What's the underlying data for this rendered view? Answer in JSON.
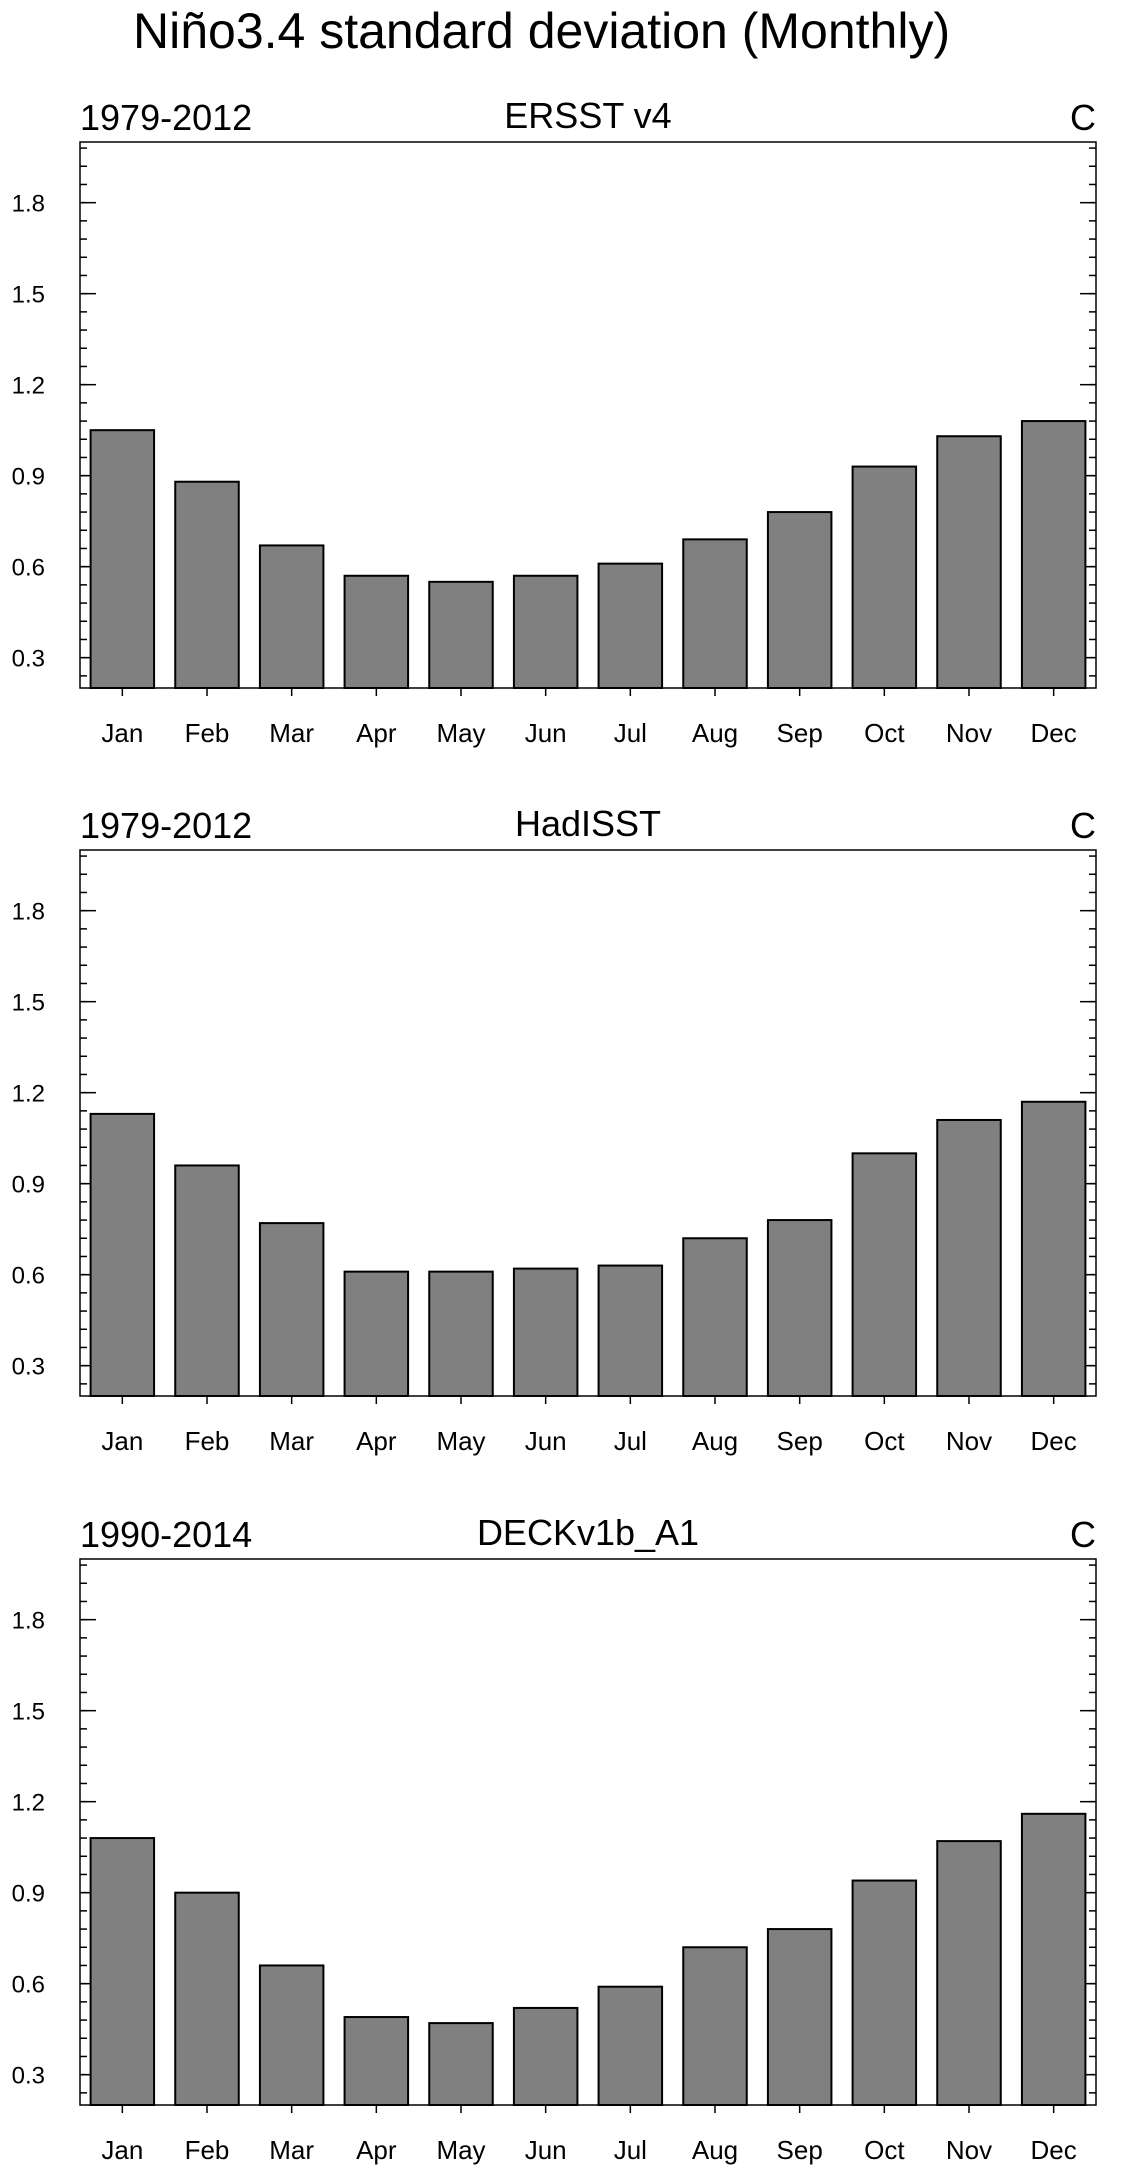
{
  "title": "Niño3.4 standard deviation (Monthly)",
  "chart_data": [
    {
      "type": "bar",
      "title_left": "1979-2012",
      "title_center": "ERSST v4",
      "title_right": "C",
      "categories": [
        "Jan",
        "Feb",
        "Mar",
        "Apr",
        "May",
        "Jun",
        "Jul",
        "Aug",
        "Sep",
        "Oct",
        "Nov",
        "Dec"
      ],
      "values": [
        1.05,
        0.88,
        0.67,
        0.57,
        0.55,
        0.57,
        0.61,
        0.69,
        0.78,
        0.93,
        1.03,
        1.08
      ],
      "yticks": [
        "0.3",
        "0.6",
        "0.9",
        "1.2",
        "1.5",
        "1.8"
      ],
      "ylim": [
        0.2,
        2.0
      ]
    },
    {
      "type": "bar",
      "title_left": "1979-2012",
      "title_center": "HadISST",
      "title_right": "C",
      "categories": [
        "Jan",
        "Feb",
        "Mar",
        "Apr",
        "May",
        "Jun",
        "Jul",
        "Aug",
        "Sep",
        "Oct",
        "Nov",
        "Dec"
      ],
      "values": [
        1.13,
        0.96,
        0.77,
        0.61,
        0.61,
        0.62,
        0.63,
        0.72,
        0.78,
        1.0,
        1.11,
        1.17
      ],
      "yticks": [
        "0.3",
        "0.6",
        "0.9",
        "1.2",
        "1.5",
        "1.8"
      ],
      "ylim": [
        0.2,
        2.0
      ]
    },
    {
      "type": "bar",
      "title_left": "1990-2014",
      "title_center": "DECKv1b_A1",
      "title_right": "C",
      "categories": [
        "Jan",
        "Feb",
        "Mar",
        "Apr",
        "May",
        "Jun",
        "Jul",
        "Aug",
        "Sep",
        "Oct",
        "Nov",
        "Dec"
      ],
      "values": [
        1.08,
        0.9,
        0.66,
        0.49,
        0.47,
        0.52,
        0.59,
        0.72,
        0.78,
        0.94,
        1.07,
        1.16
      ],
      "yticks": [
        "0.3",
        "0.6",
        "0.9",
        "1.2",
        "1.5",
        "1.8"
      ],
      "ylim": [
        0.2,
        2.0
      ]
    }
  ]
}
